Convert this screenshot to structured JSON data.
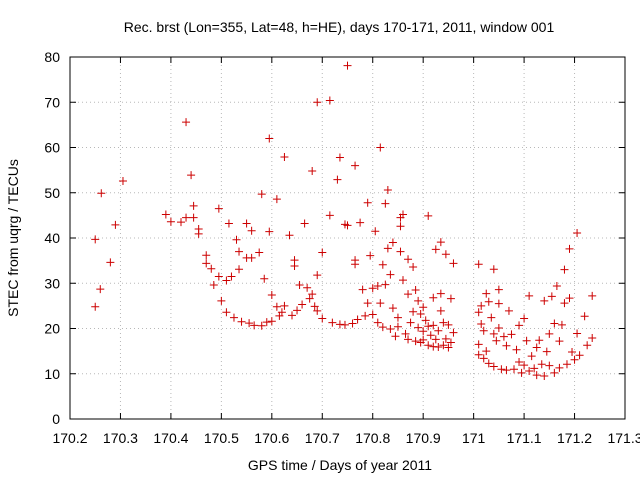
{
  "chart_data": {
    "type": "scatter",
    "title": "Rec. brst (Lon=355, Lat=48, h=HE), days 170-171, 2011, window 001",
    "xlabel": "GPS time / Days of year 2011",
    "ylabel": "STEC from uqrg / TECUs",
    "xlim": [
      170.2,
      171.3
    ],
    "ylim": [
      0,
      80
    ],
    "xticks": [
      170.2,
      170.3,
      170.4,
      170.5,
      170.6,
      170.7,
      170.8,
      170.9,
      171,
      171.1,
      171.2,
      171.3
    ],
    "xtick_labels": [
      "170.2",
      "170.3",
      "170.4",
      "170.5",
      "170.6",
      "170.7",
      "170.8",
      "170.9",
      "171",
      "171.1",
      "171.2",
      "171.3"
    ],
    "yticks": [
      0,
      10,
      20,
      30,
      40,
      50,
      60,
      70,
      80
    ],
    "ytick_labels": [
      "0",
      "10",
      "20",
      "30",
      "40",
      "50",
      "60",
      "70",
      "80"
    ],
    "grid": true,
    "marker": "plus",
    "color": "#cc0000",
    "points": [
      [
        170.25,
        39.7
      ],
      [
        170.25,
        24.8
      ],
      [
        170.26,
        28.7
      ],
      [
        170.262,
        49.9
      ],
      [
        170.28,
        34.6
      ],
      [
        170.29,
        42.9
      ],
      [
        170.305,
        52.6
      ],
      [
        170.39,
        45.2
      ],
      [
        170.4,
        43.6
      ],
      [
        170.42,
        43.5
      ],
      [
        170.43,
        44.5
      ],
      [
        170.43,
        65.6
      ],
      [
        170.44,
        53.9
      ],
      [
        170.445,
        47.1
      ],
      [
        170.445,
        44.5
      ],
      [
        170.455,
        42.0
      ],
      [
        170.455,
        40.9
      ],
      [
        170.47,
        36.2
      ],
      [
        170.47,
        34.4
      ],
      [
        170.48,
        33.2
      ],
      [
        170.485,
        29.6
      ],
      [
        170.495,
        31.5
      ],
      [
        170.495,
        46.5
      ],
      [
        170.5,
        26.1
      ],
      [
        170.51,
        30.6
      ],
      [
        170.51,
        23.6
      ],
      [
        170.515,
        43.2
      ],
      [
        170.52,
        31.5
      ],
      [
        170.525,
        22.4
      ],
      [
        170.53,
        39.6
      ],
      [
        170.535,
        33.1
      ],
      [
        170.535,
        37.0
      ],
      [
        170.54,
        21.5
      ],
      [
        170.55,
        43.2
      ],
      [
        170.55,
        35.6
      ],
      [
        170.555,
        21.2
      ],
      [
        170.56,
        41.6
      ],
      [
        170.56,
        35.6
      ],
      [
        170.565,
        20.7
      ],
      [
        170.575,
        36.8
      ],
      [
        170.58,
        49.7
      ],
      [
        170.58,
        20.6
      ],
      [
        170.585,
        31.0
      ],
      [
        170.59,
        21.4
      ],
      [
        170.595,
        62.0
      ],
      [
        170.595,
        41.4
      ],
      [
        170.6,
        27.4
      ],
      [
        170.6,
        21.6
      ],
      [
        170.61,
        48.6
      ],
      [
        170.61,
        24.8
      ],
      [
        170.615,
        22.8
      ],
      [
        170.62,
        23.6
      ],
      [
        170.625,
        25.0
      ],
      [
        170.625,
        57.9
      ],
      [
        170.635,
        40.6
      ],
      [
        170.64,
        22.9
      ],
      [
        170.645,
        35.1
      ],
      [
        170.645,
        33.8
      ],
      [
        170.65,
        24.0
      ],
      [
        170.655,
        29.6
      ],
      [
        170.66,
        25.3
      ],
      [
        170.665,
        43.2
      ],
      [
        170.67,
        29.0
      ],
      [
        170.675,
        26.6
      ],
      [
        170.68,
        54.8
      ],
      [
        170.68,
        27.6
      ],
      [
        170.685,
        24.9
      ],
      [
        170.69,
        70.0
      ],
      [
        170.69,
        31.8
      ],
      [
        170.69,
        23.9
      ],
      [
        170.7,
        36.8
      ],
      [
        170.7,
        22.2
      ],
      [
        170.715,
        70.4
      ],
      [
        170.715,
        45.0
      ],
      [
        170.72,
        21.3
      ],
      [
        170.73,
        52.9
      ],
      [
        170.735,
        57.8
      ],
      [
        170.735,
        20.9
      ],
      [
        170.745,
        43.0
      ],
      [
        170.745,
        20.8
      ],
      [
        170.75,
        78.1
      ],
      [
        170.75,
        42.8
      ],
      [
        170.76,
        21.1
      ],
      [
        170.765,
        35.1
      ],
      [
        170.765,
        34.2
      ],
      [
        170.765,
        56.0
      ],
      [
        170.77,
        22.0
      ],
      [
        170.775,
        43.4
      ],
      [
        170.78,
        28.6
      ],
      [
        170.785,
        22.8
      ],
      [
        170.79,
        47.8
      ],
      [
        170.79,
        25.6
      ],
      [
        170.795,
        36.1
      ],
      [
        170.8,
        28.9
      ],
      [
        170.8,
        23.1
      ],
      [
        170.805,
        41.5
      ],
      [
        170.81,
        29.4
      ],
      [
        170.81,
        21.3
      ],
      [
        170.815,
        60.0
      ],
      [
        170.815,
        25.6
      ],
      [
        170.82,
        20.3
      ],
      [
        170.82,
        34.1
      ],
      [
        170.825,
        47.6
      ],
      [
        170.825,
        29.7
      ],
      [
        170.83,
        50.6
      ],
      [
        170.83,
        37.7
      ],
      [
        170.835,
        31.9
      ],
      [
        170.835,
        19.9
      ],
      [
        170.84,
        24.5
      ],
      [
        170.84,
        39.0
      ],
      [
        170.845,
        18.3
      ],
      [
        170.85,
        22.4
      ],
      [
        170.85,
        20.4
      ],
      [
        170.855,
        44.5
      ],
      [
        170.855,
        42.6
      ],
      [
        170.855,
        37.0
      ],
      [
        170.86,
        45.2
      ],
      [
        170.86,
        30.7
      ],
      [
        170.865,
        18.8
      ],
      [
        170.87,
        35.3
      ],
      [
        170.87,
        27.6
      ],
      [
        170.87,
        17.6
      ],
      [
        170.875,
        21.3
      ],
      [
        170.88,
        33.6
      ],
      [
        170.88,
        23.7
      ],
      [
        170.885,
        28.5
      ],
      [
        170.885,
        17.2
      ],
      [
        170.89,
        26.1
      ],
      [
        170.89,
        20.2
      ],
      [
        170.895,
        23.2
      ],
      [
        170.895,
        16.9
      ],
      [
        170.9,
        24.7
      ],
      [
        170.9,
        19.4
      ],
      [
        170.9,
        17.5
      ],
      [
        170.905,
        21.8
      ],
      [
        170.91,
        44.9
      ],
      [
        170.91,
        20.5
      ],
      [
        170.91,
        16.3
      ],
      [
        170.915,
        18.5
      ],
      [
        170.92,
        26.8
      ],
      [
        170.92,
        20.7
      ],
      [
        170.92,
        16.0
      ],
      [
        170.925,
        37.5
      ],
      [
        170.925,
        17.6
      ],
      [
        170.93,
        19.5
      ],
      [
        170.93,
        15.9
      ],
      [
        170.935,
        39.1
      ],
      [
        170.935,
        27.7
      ],
      [
        170.935,
        23.9
      ],
      [
        170.94,
        21.3
      ],
      [
        170.94,
        16.3
      ],
      [
        170.945,
        17.7
      ],
      [
        170.945,
        36.4
      ],
      [
        170.95,
        20.8
      ],
      [
        170.95,
        15.8
      ],
      [
        170.955,
        26.6
      ],
      [
        170.955,
        16.9
      ],
      [
        170.96,
        34.4
      ],
      [
        170.96,
        19.1
      ],
      [
        171.01,
        34.2
      ],
      [
        171.01,
        23.6
      ],
      [
        171.01,
        16.5
      ],
      [
        171.01,
        14.2
      ],
      [
        171.015,
        25.0
      ],
      [
        171.015,
        21.0
      ],
      [
        171.02,
        19.5
      ],
      [
        171.02,
        13.4
      ],
      [
        171.025,
        27.7
      ],
      [
        171.025,
        15.0
      ],
      [
        171.03,
        25.9
      ],
      [
        171.03,
        12.3
      ],
      [
        171.035,
        22.4
      ],
      [
        171.04,
        33.1
      ],
      [
        171.04,
        18.8
      ],
      [
        171.04,
        11.6
      ],
      [
        171.045,
        17.3
      ],
      [
        171.05,
        25.5
      ],
      [
        171.05,
        28.6
      ],
      [
        171.05,
        20.1
      ],
      [
        171.055,
        11.0
      ],
      [
        171.06,
        18.2
      ],
      [
        171.065,
        16.2
      ],
      [
        171.065,
        10.8
      ],
      [
        171.07,
        23.9
      ],
      [
        171.075,
        18.7
      ],
      [
        171.08,
        11.0
      ],
      [
        171.085,
        15.3
      ],
      [
        171.09,
        20.7
      ],
      [
        171.09,
        12.6
      ],
      [
        171.095,
        10.2
      ],
      [
        171.1,
        11.9
      ],
      [
        171.1,
        22.2
      ],
      [
        171.105,
        17.3
      ],
      [
        171.11,
        10.6
      ],
      [
        171.11,
        27.2
      ],
      [
        171.115,
        13.9
      ],
      [
        171.12,
        11.2
      ],
      [
        171.125,
        9.7
      ],
      [
        171.125,
        15.8
      ],
      [
        171.13,
        17.4
      ],
      [
        171.135,
        12.1
      ],
      [
        171.14,
        26.1
      ],
      [
        171.14,
        9.5
      ],
      [
        171.145,
        14.9
      ],
      [
        171.15,
        18.8
      ],
      [
        171.15,
        11.8
      ],
      [
        171.155,
        27.1
      ],
      [
        171.16,
        10.2
      ],
      [
        171.16,
        21.1
      ],
      [
        171.165,
        29.4
      ],
      [
        171.17,
        17.2
      ],
      [
        171.17,
        11.3
      ],
      [
        171.175,
        20.8
      ],
      [
        171.18,
        33.0
      ],
      [
        171.18,
        25.6
      ],
      [
        171.185,
        12.1
      ],
      [
        171.19,
        37.6
      ],
      [
        171.19,
        26.7
      ],
      [
        171.195,
        14.8
      ],
      [
        171.2,
        13.1
      ],
      [
        171.205,
        41.1
      ],
      [
        171.205,
        18.9
      ],
      [
        171.21,
        14.1
      ],
      [
        171.22,
        22.7
      ],
      [
        171.225,
        16.3
      ],
      [
        171.235,
        27.2
      ],
      [
        171.235,
        17.9
      ]
    ]
  }
}
